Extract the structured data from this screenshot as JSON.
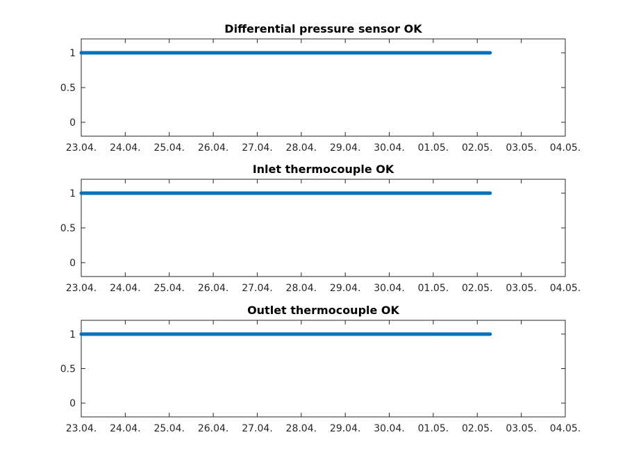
{
  "chart_data": [
    {
      "type": "line",
      "title": "Differential pressure sensor OK",
      "x_ticks": [
        "23.04.",
        "24.04.",
        "25.04.",
        "26.04.",
        "27.04.",
        "28.04.",
        "29.04.",
        "30.04.",
        "01.05.",
        "02.05.",
        "03.05.",
        "04.05."
      ],
      "xlim": [
        "23.04.",
        "04.05."
      ],
      "y_ticks": [
        "0",
        "0.5",
        "1"
      ],
      "ylim": [
        -0.2,
        1.2
      ],
      "grid": false,
      "series": [
        {
          "color": "#0072bd",
          "x": [
            "23.04.",
            "02.05. (~07:00)"
          ],
          "values": [
            1,
            1
          ]
        }
      ]
    },
    {
      "type": "line",
      "title": "Inlet thermocouple OK",
      "x_ticks": [
        "23.04.",
        "24.04.",
        "25.04.",
        "26.04.",
        "27.04.",
        "28.04.",
        "29.04.",
        "30.04.",
        "01.05.",
        "02.05.",
        "03.05.",
        "04.05."
      ],
      "xlim": [
        "23.04.",
        "04.05."
      ],
      "y_ticks": [
        "0",
        "0.5",
        "1"
      ],
      "ylim": [
        -0.2,
        1.2
      ],
      "grid": false,
      "series": [
        {
          "color": "#0072bd",
          "x": [
            "23.04.",
            "02.05. (~07:00)"
          ],
          "values": [
            1,
            1
          ]
        }
      ]
    },
    {
      "type": "line",
      "title": "Outlet thermocouple OK",
      "x_ticks": [
        "23.04.",
        "24.04.",
        "25.04.",
        "26.04.",
        "27.04.",
        "28.04.",
        "29.04.",
        "30.04.",
        "01.05.",
        "02.05.",
        "03.05.",
        "04.05."
      ],
      "xlim": [
        "23.04.",
        "04.05."
      ],
      "y_ticks": [
        "0",
        "0.5",
        "1"
      ],
      "ylim": [
        -0.2,
        1.2
      ],
      "grid": false,
      "series": [
        {
          "color": "#0072bd",
          "x": [
            "23.04.",
            "02.05. (~07:00)"
          ],
          "values": [
            1,
            1
          ]
        }
      ]
    }
  ]
}
